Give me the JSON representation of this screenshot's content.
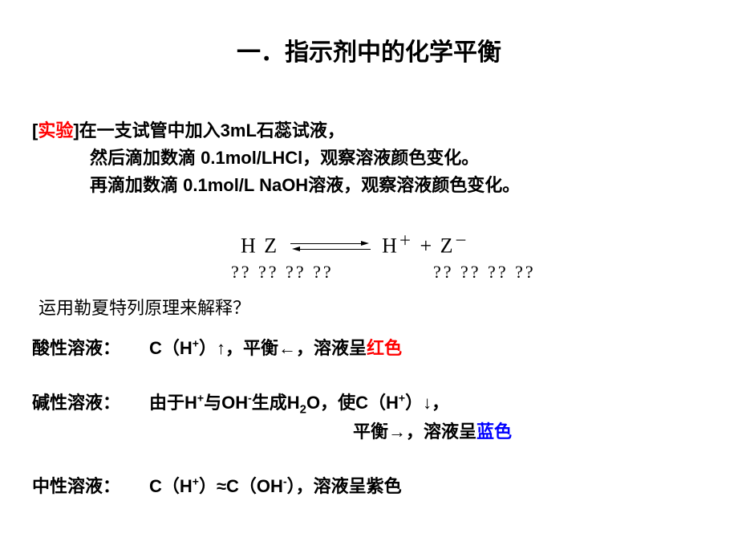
{
  "title": "一．指示剂中的化学平衡",
  "experiment": {
    "label": "实验",
    "line1_prefix": "[",
    "line1_suffix": "]在一支试管中加入3mL石蕊试液，",
    "line2": "然后滴加数滴 0.1mol/LHCl，观察溶液颜色变化。",
    "line3": "再滴加数滴  0.1mol/L NaOH溶液，观察溶液颜色变化。"
  },
  "equation": {
    "left": "H Z",
    "right_h": "H",
    "right_plus": "+",
    "right_z": "Z",
    "sup_plus": "＋",
    "sup_minus": "－",
    "plus_between": "  +  "
  },
  "qmarks": "?? ?? ?? ??",
  "lechat": "运用勒夏特列原理来解释？",
  "acid": {
    "label": "酸性溶液：",
    "body_1": " C（H",
    "body_2": "）↑，平衡←，溶液呈",
    "body_3": "红色",
    "sup": "+"
  },
  "base": {
    "label": "碱性溶液：",
    "body_1": "由于H",
    "body_2": "与OH",
    "body_3": "生成H",
    "body_4": "O，使C（H",
    "body_5": "）↓，",
    "body2_1": "平衡→，溶液呈",
    "body2_2": "蓝色",
    "sup_plus": "+",
    "sup_minus": "-",
    "sub_2": "2"
  },
  "neutral": {
    "label": "中性溶液：",
    "body_1": " C（H",
    "body_2": "）≈C（OH",
    "body_3": "），溶液呈紫色",
    "sup_plus": "+",
    "sup_minus": "-"
  },
  "colors": {
    "red": "#ff0000",
    "blue": "#0000ff",
    "black": "#000000",
    "background": "#ffffff"
  },
  "typography": {
    "title_fontsize": 30,
    "body_fontsize": 22,
    "equation_fontsize": 26
  }
}
